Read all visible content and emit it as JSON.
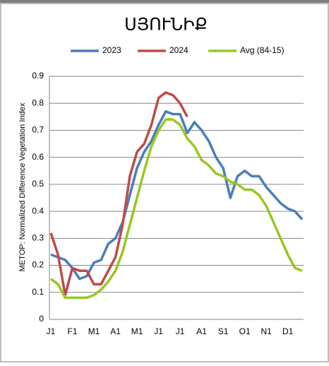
{
  "chart_data": {
    "type": "line",
    "title": "ՍՅՈՒՆԻՔ",
    "y_label": "METOP: Normalized Difference Vegetation Index",
    "categories": [
      "J1",
      null,
      null,
      "F1",
      null,
      null,
      "M1",
      null,
      null,
      "A1",
      null,
      null,
      "M1",
      null,
      null,
      "J1",
      null,
      null,
      "J1",
      null,
      null,
      "A1",
      null,
      null,
      "S1",
      null,
      null,
      "O1",
      null,
      null,
      "N1",
      null,
      null,
      "D1",
      null,
      null
    ],
    "series": [
      {
        "name": "2023",
        "color": "#4a7ebb",
        "values": [
          0.24,
          0.23,
          0.22,
          0.19,
          0.15,
          0.16,
          0.21,
          0.22,
          0.28,
          0.3,
          0.36,
          0.46,
          0.56,
          0.62,
          0.66,
          0.72,
          0.77,
          0.76,
          0.76,
          0.69,
          0.73,
          0.7,
          0.66,
          0.6,
          0.56,
          0.45,
          0.53,
          0.55,
          0.53,
          0.53,
          0.49,
          0.46,
          0.43,
          0.41,
          0.4,
          0.37
        ]
      },
      {
        "name": "2024",
        "color": "#be4b48",
        "values": [
          0.32,
          0.24,
          0.09,
          0.19,
          0.18,
          0.18,
          0.13,
          0.13,
          0.18,
          0.23,
          0.35,
          0.53,
          0.62,
          0.65,
          0.72,
          0.82,
          0.84,
          0.83,
          0.8,
          0.75,
          null,
          null,
          null,
          null,
          null,
          null,
          null,
          null,
          null,
          null,
          null,
          null,
          null,
          null,
          null,
          null
        ]
      },
      {
        "name": "Avg (84-15)",
        "color": "#98c723",
        "values": [
          0.15,
          0.13,
          0.08,
          0.08,
          0.08,
          0.08,
          0.09,
          0.11,
          0.14,
          0.18,
          0.25,
          0.35,
          0.45,
          0.55,
          0.64,
          0.7,
          0.74,
          0.74,
          0.72,
          0.67,
          0.64,
          0.59,
          0.57,
          0.54,
          0.53,
          0.51,
          0.5,
          0.48,
          0.48,
          0.46,
          0.42,
          0.36,
          0.3,
          0.24,
          0.19,
          0.18
        ]
      }
    ],
    "ylim": [
      0,
      0.9
    ],
    "yticks": [
      0,
      0.1,
      0.2,
      0.3,
      0.4,
      0.5,
      0.6,
      0.7,
      0.8,
      0.9
    ],
    "grid": true,
    "legend": "top"
  }
}
